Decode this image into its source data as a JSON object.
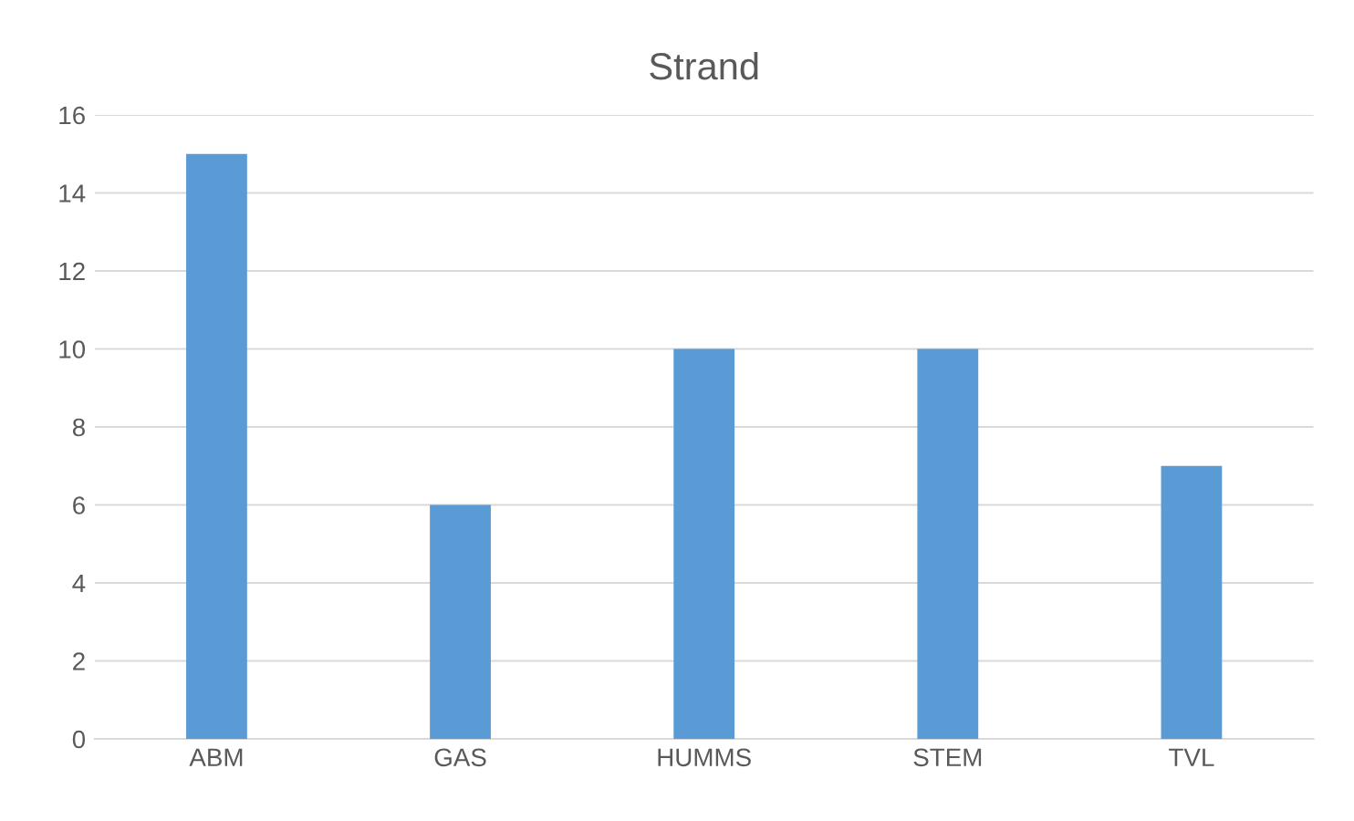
{
  "chart_data": {
    "type": "bar",
    "title": "Strand",
    "categories": [
      "ABM",
      "GAS",
      "HUMMS",
      "STEM",
      "TVL"
    ],
    "values": [
      15,
      6,
      10,
      10,
      7
    ],
    "color": "#5b9bd5",
    "ylim": [
      0,
      16
    ],
    "yticks": [
      0,
      2,
      4,
      6,
      8,
      10,
      12,
      14,
      16
    ],
    "grid": "y"
  }
}
